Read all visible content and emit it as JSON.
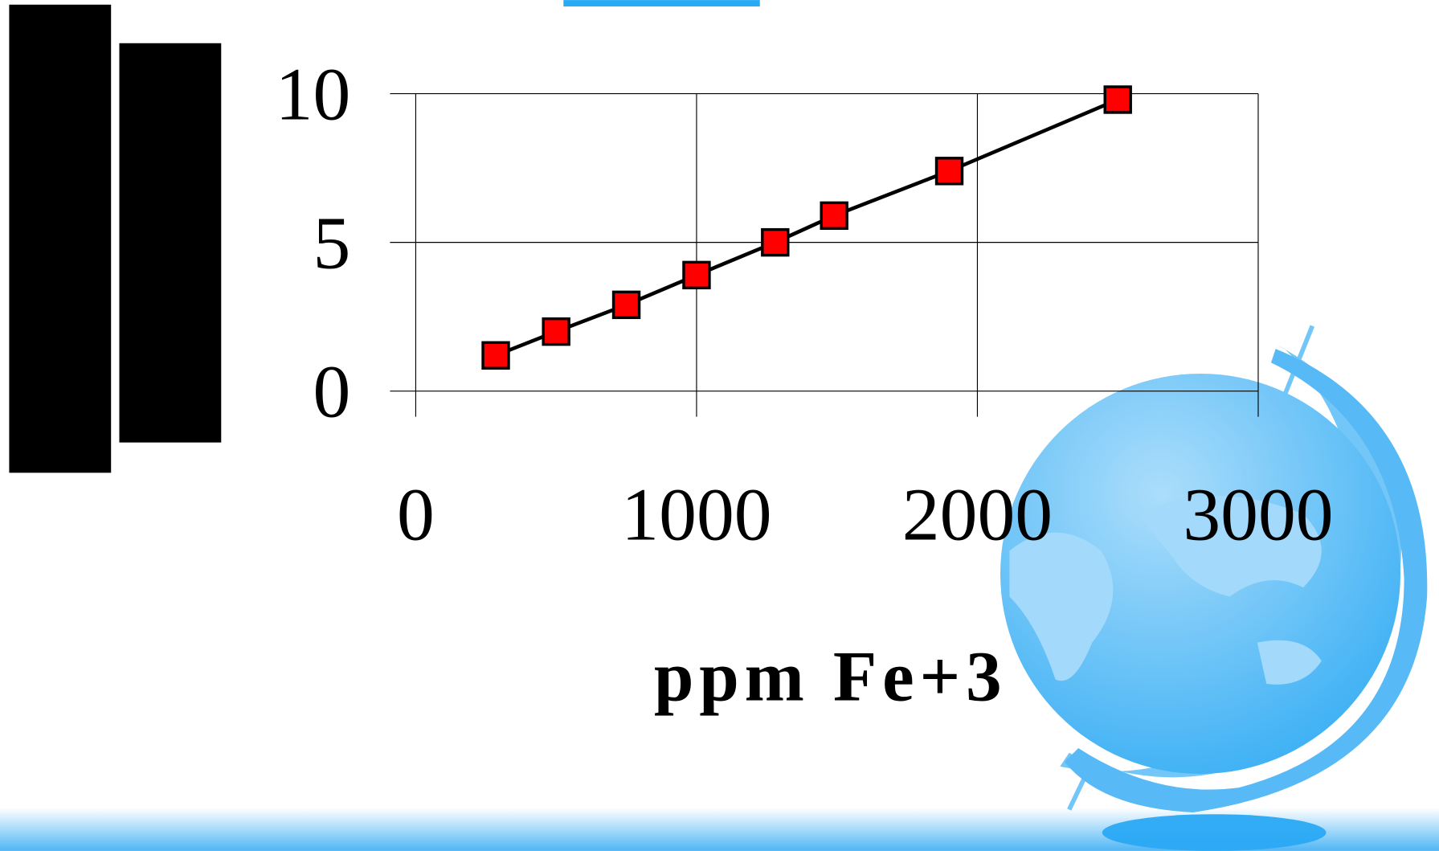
{
  "chart_data": {
    "type": "scatter",
    "x_label": "ppm Fe+3",
    "x": [
      285,
      500,
      750,
      1000,
      1280,
      1490,
      1900,
      2500
    ],
    "values": [
      1.2,
      2.0,
      2.9,
      3.9,
      5.0,
      5.9,
      7.4,
      9.8
    ],
    "color": "#ff0000",
    "line_color": "#000000",
    "xlim": [
      0,
      3000
    ],
    "xticks": [
      0,
      1000,
      2000,
      3000
    ],
    "ylim": [
      0,
      10
    ],
    "yticks": [
      0,
      5,
      10
    ],
    "grid": true
  }
}
